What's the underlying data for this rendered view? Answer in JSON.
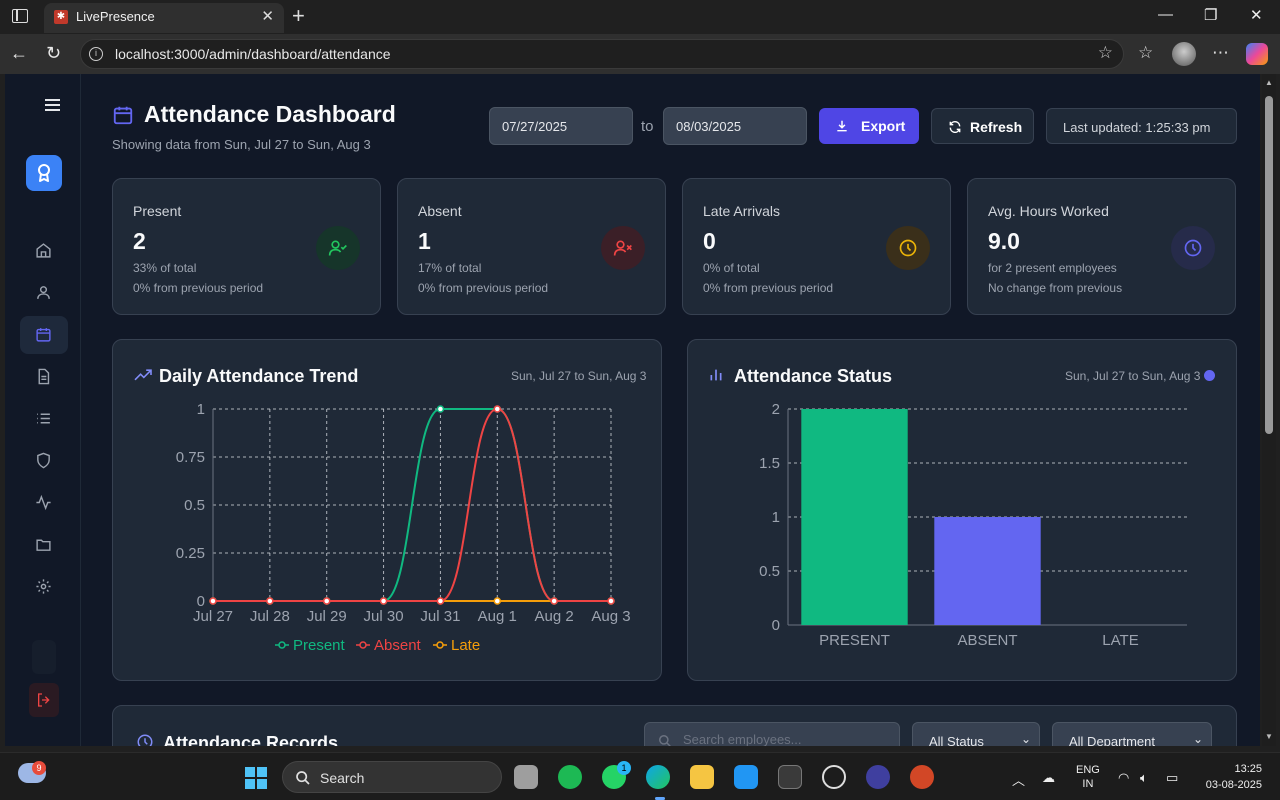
{
  "browser": {
    "tab_title": "LivePresence",
    "url": "localhost:3000/admin/dashboard/attendance"
  },
  "header": {
    "title": "Attendance Dashboard",
    "subtitle": "Showing data from Sun, Jul 27 to Sun, Aug 3",
    "date_from": "07/27/2025",
    "to_label": "to",
    "date_to": "08/03/2025",
    "export_label": "Export",
    "refresh_label": "Refresh",
    "last_updated": "Last updated: 1:25:33 pm"
  },
  "cards": [
    {
      "label": "Present",
      "value": "2",
      "sub1": "33% of total",
      "sub2": "0% from previous period",
      "icon": "user-check-icon",
      "color": "#22c55e"
    },
    {
      "label": "Absent",
      "value": "1",
      "sub1": "17% of total",
      "sub2": "0% from previous period",
      "icon": "user-x-icon",
      "color": "#ef4444"
    },
    {
      "label": "Late Arrivals",
      "value": "0",
      "sub1": "0% of total",
      "sub2": "0% from previous period",
      "icon": "clock-icon",
      "color": "#eab308"
    },
    {
      "label": "Avg. Hours Worked",
      "value": "9.0",
      "sub1": "for 2 present employees",
      "sub2": "No change from previous",
      "icon": "clock-icon",
      "color": "#6366f1"
    }
  ],
  "trend_panel": {
    "title": "Daily Attendance Trend",
    "range": "Sun, Jul 27 to Sun, Aug 3"
  },
  "status_panel": {
    "title": "Attendance Status",
    "range": "Sun, Jul 27 to Sun, Aug 3"
  },
  "chart_data": [
    {
      "type": "line",
      "title": "Daily Attendance Trend",
      "x": [
        "Jul 27",
        "Jul 28",
        "Jul 29",
        "Jul 30",
        "Jul 31",
        "Aug 1",
        "Aug 2",
        "Aug 3"
      ],
      "ylim": [
        0,
        1
      ],
      "yticks": [
        "0",
        "0.25",
        "0.5",
        "0.75",
        "1"
      ],
      "grid": true,
      "legend": "bottom",
      "series": [
        {
          "name": "Present",
          "values": [
            0,
            0,
            0,
            0,
            1,
            1,
            0,
            0
          ],
          "color": "#10b981"
        },
        {
          "name": "Absent",
          "values": [
            0,
            0,
            0,
            0,
            0,
            1,
            0,
            0
          ],
          "color": "#ef4444"
        },
        {
          "name": "Late",
          "values": [
            0,
            0,
            0,
            0,
            0,
            0,
            0,
            0
          ],
          "color": "#f59e0b"
        }
      ]
    },
    {
      "type": "bar",
      "title": "Attendance Status",
      "categories": [
        "PRESENT",
        "ABSENT",
        "LATE"
      ],
      "values": [
        2,
        1,
        0
      ],
      "colors": [
        "#10b981",
        "#6366f1",
        "#f59e0b"
      ],
      "ylim": [
        0,
        2
      ],
      "yticks": [
        "0",
        "0.5",
        "1",
        "1.5",
        "2"
      ],
      "grid": true
    }
  ],
  "records": {
    "title": "Attendance Records",
    "search_placeholder": "Search employees...",
    "status_filter": "All Status",
    "department_filter": "All Department"
  },
  "taskbar": {
    "weather_badge": "9",
    "search_label": "Search",
    "whatsapp_badge": "1",
    "lang_line1": "ENG",
    "lang_line2": "IN",
    "time": "13:25",
    "date": "03-08-2025"
  }
}
